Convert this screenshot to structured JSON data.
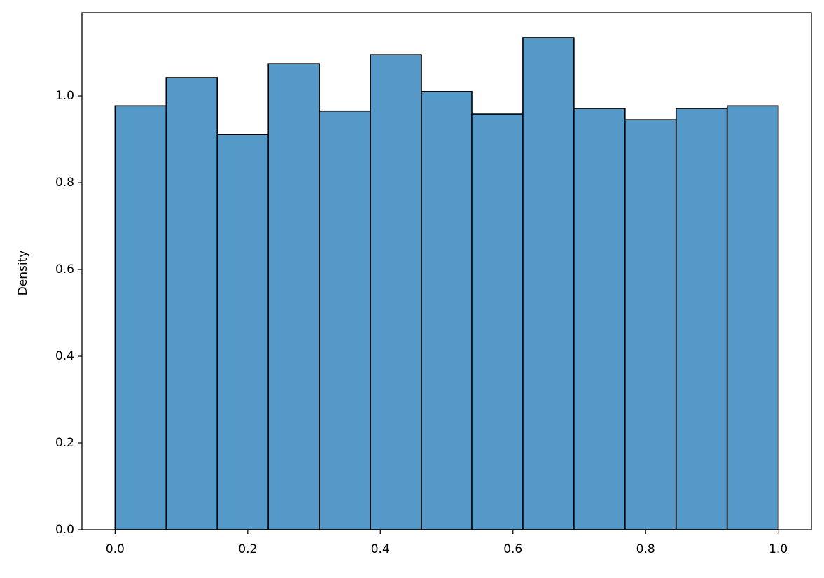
{
  "chart_data": {
    "type": "histogram",
    "y_label": "Density",
    "bins": [
      0,
      0.077,
      0.154,
      0.231,
      0.308,
      0.385,
      0.462,
      0.538,
      0.615,
      0.692,
      0.769,
      0.846,
      0.923,
      1.0
    ],
    "values": [
      0.977,
      1.042,
      0.911,
      1.074,
      0.965,
      1.095,
      1.01,
      0.958,
      1.134,
      0.971,
      0.945,
      0.971,
      0.977
    ],
    "color": "#5599c8",
    "xlim": [
      -0.05,
      1.05
    ],
    "ylim": [
      0,
      1.192
    ],
    "xticks": [
      {
        "value": 0,
        "label": "0.0"
      },
      0.2,
      0.4,
      0.6,
      0.8,
      {
        "value": 1,
        "label": "1.0"
      }
    ],
    "yticks": [
      {
        "value": 0,
        "label": "0.0"
      },
      0.2,
      0.4,
      0.6,
      0.8,
      {
        "value": 1,
        "label": "1.0"
      }
    ]
  }
}
